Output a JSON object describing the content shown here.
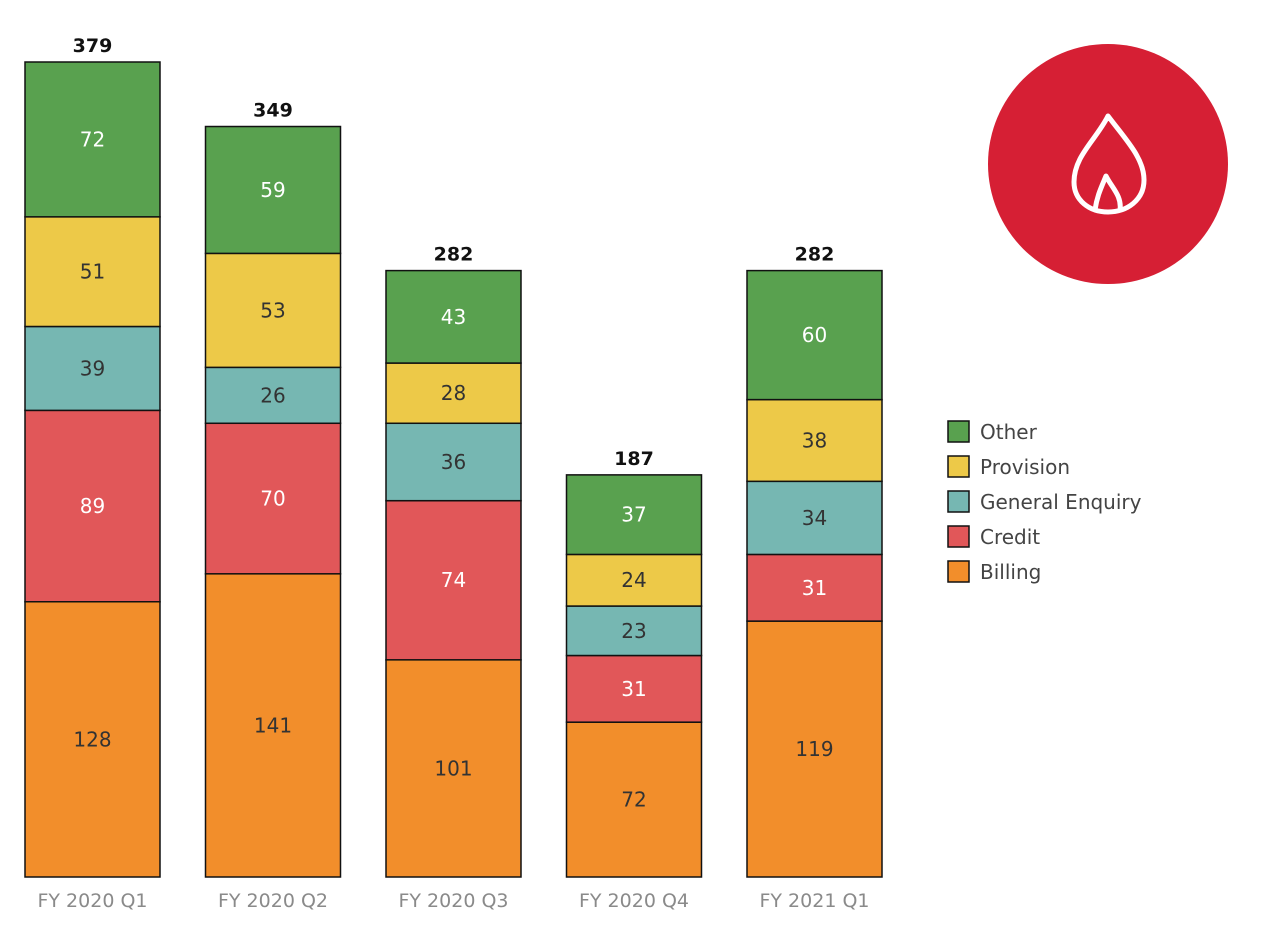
{
  "chart_data": {
    "type": "bar",
    "stacked": true,
    "categories": [
      "FY 2020 Q1",
      "FY 2020 Q2",
      "FY 2020 Q3",
      "FY 2020 Q4",
      "FY 2021 Q1"
    ],
    "totals": [
      379,
      349,
      282,
      187,
      282
    ],
    "series": [
      {
        "name": "Billing",
        "color": "#F28E2B",
        "label_color": "#333333",
        "values": [
          128,
          141,
          101,
          72,
          119
        ]
      },
      {
        "name": "Credit",
        "color": "#E15759",
        "label_color": "#ffffff",
        "values": [
          89,
          70,
          74,
          31,
          31
        ]
      },
      {
        "name": "General Enquiry",
        "color": "#76B7B2",
        "label_color": "#333333",
        "values": [
          39,
          26,
          36,
          23,
          34
        ]
      },
      {
        "name": "Provision",
        "color": "#EDC948",
        "label_color": "#333333",
        "values": [
          51,
          53,
          28,
          24,
          38
        ]
      },
      {
        "name": "Other",
        "color": "#59A14F",
        "label_color": "#ffffff",
        "values": [
          72,
          59,
          43,
          37,
          60
        ]
      }
    ],
    "legend_order": [
      "Other",
      "Provision",
      "General Enquiry",
      "Credit",
      "Billing"
    ],
    "legend_position": "right",
    "ylim": [
      0,
      379
    ],
    "grid": false
  },
  "badge": {
    "icon": "flame-icon",
    "color": "#D61F34"
  }
}
